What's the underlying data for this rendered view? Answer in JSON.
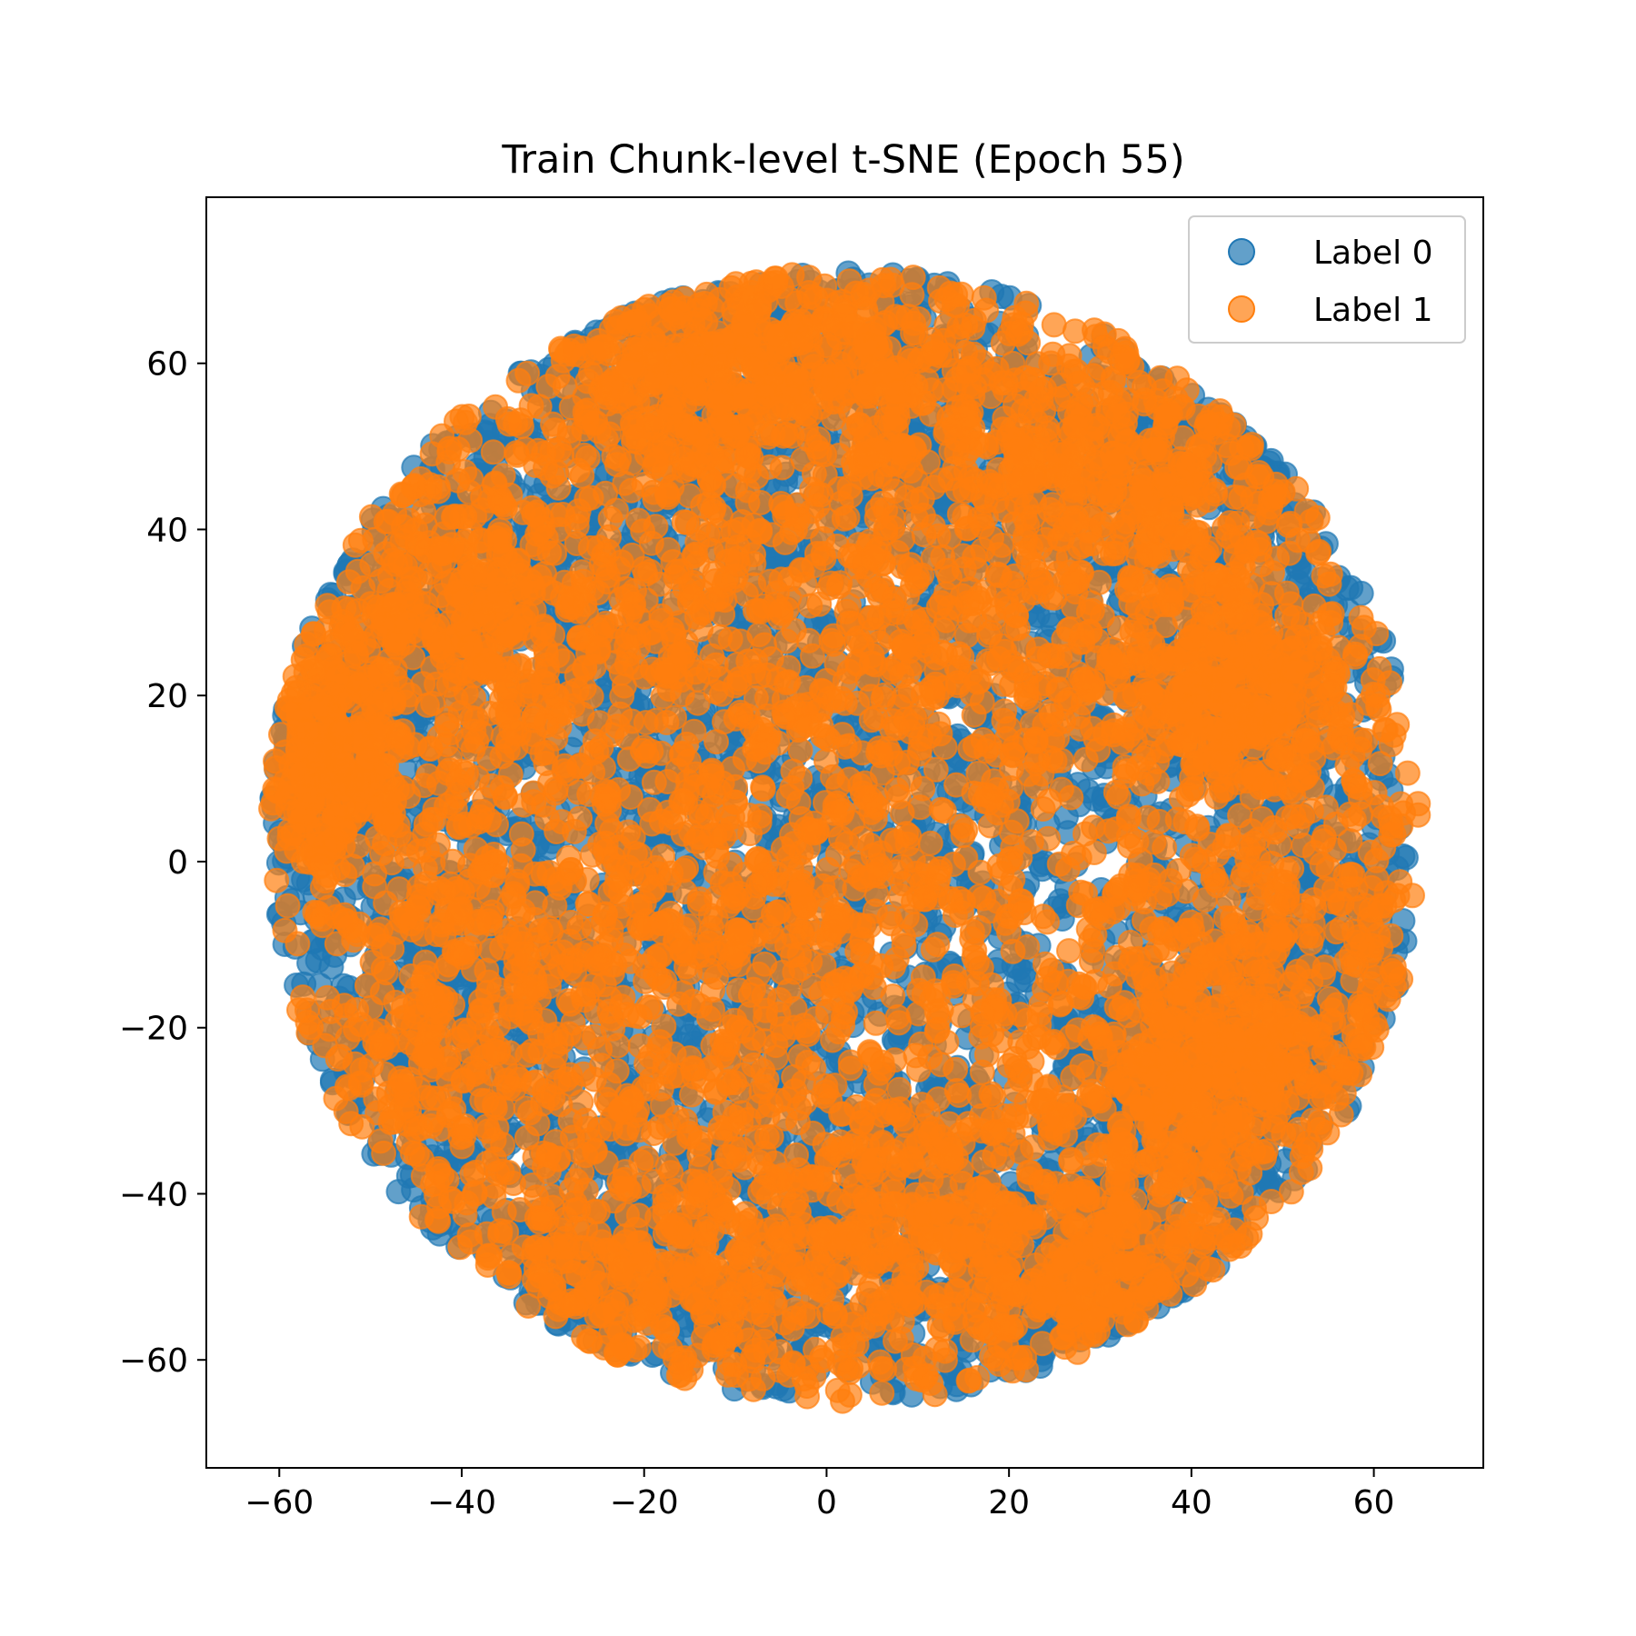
{
  "colors": {
    "label0": "#1f77b4",
    "label1": "#ff7f0e",
    "axes": "#000000",
    "background": "#ffffff"
  },
  "chart_data": {
    "type": "scatter",
    "title": "Train Chunk-level t-SNE (Epoch 55)",
    "xlabel": "",
    "ylabel": "",
    "xlim": [
      -68,
      72
    ],
    "ylim": [
      -73,
      80
    ],
    "xticks": [
      -60,
      -40,
      -20,
      0,
      20,
      40,
      60
    ],
    "yticks": [
      -60,
      -40,
      -20,
      0,
      20,
      40,
      60
    ],
    "xtick_labels": [
      "−60",
      "−40",
      "−20",
      "0",
      "20",
      "40",
      "60"
    ],
    "ytick_labels": [
      "−60",
      "−40",
      "−20",
      "0",
      "20",
      "40",
      "60"
    ],
    "grid": false,
    "legend_position": "upper right",
    "alpha": 0.7,
    "series": [
      {
        "name": "Label 0",
        "color": "#1f77b4",
        "approx_points": 6000,
        "blobs": [
          {
            "cx": -18,
            "cy": 60,
            "rx": 10,
            "ry": 10
          },
          {
            "cx": 5,
            "cy": 58,
            "rx": 12,
            "ry": 10
          },
          {
            "cx": 35,
            "cy": 48,
            "rx": 14,
            "ry": 10
          },
          {
            "cx": -40,
            "cy": 30,
            "rx": 12,
            "ry": 10
          },
          {
            "cx": -55,
            "cy": 12,
            "rx": 6,
            "ry": 8
          },
          {
            "cx": -20,
            "cy": 25,
            "rx": 22,
            "ry": 22
          },
          {
            "cx": 15,
            "cy": 25,
            "rx": 20,
            "ry": 18
          },
          {
            "cx": 45,
            "cy": 20,
            "rx": 8,
            "ry": 8
          },
          {
            "cx": -40,
            "cy": -20,
            "rx": 14,
            "ry": 18
          },
          {
            "cx": -5,
            "cy": -10,
            "rx": 18,
            "ry": 18
          },
          {
            "cx": 55,
            "cy": -15,
            "rx": 10,
            "ry": 16
          },
          {
            "cx": 40,
            "cy": -25,
            "rx": 10,
            "ry": 10
          },
          {
            "cx": -20,
            "cy": -50,
            "rx": 14,
            "ry": 10
          },
          {
            "cx": 10,
            "cy": -45,
            "rx": 15,
            "ry": 12
          },
          {
            "cx": 30,
            "cy": -50,
            "rx": 12,
            "ry": 10
          }
        ],
        "x_range": [
          -62,
          62
        ],
        "y_range": [
          -64,
          71
        ]
      },
      {
        "name": "Label 1",
        "color": "#ff7f0e",
        "approx_points": 6000,
        "blobs": [
          {
            "cx": -18,
            "cy": 60,
            "rx": 10,
            "ry": 10
          },
          {
            "cx": 5,
            "cy": 58,
            "rx": 12,
            "ry": 10
          },
          {
            "cx": 35,
            "cy": 48,
            "rx": 14,
            "ry": 10
          },
          {
            "cx": -40,
            "cy": 30,
            "rx": 12,
            "ry": 10
          },
          {
            "cx": -55,
            "cy": 12,
            "rx": 6,
            "ry": 8
          },
          {
            "cx": -20,
            "cy": 25,
            "rx": 22,
            "ry": 22
          },
          {
            "cx": 15,
            "cy": 25,
            "rx": 20,
            "ry": 18
          },
          {
            "cx": 45,
            "cy": 20,
            "rx": 8,
            "ry": 8
          },
          {
            "cx": -40,
            "cy": -20,
            "rx": 14,
            "ry": 18
          },
          {
            "cx": -5,
            "cy": -10,
            "rx": 18,
            "ry": 18
          },
          {
            "cx": 55,
            "cy": -15,
            "rx": 10,
            "ry": 16
          },
          {
            "cx": 40,
            "cy": -25,
            "rx": 10,
            "ry": 10
          },
          {
            "cx": -20,
            "cy": -50,
            "rx": 14,
            "ry": 10
          },
          {
            "cx": 10,
            "cy": -45,
            "rx": 15,
            "ry": 12
          },
          {
            "cx": 30,
            "cy": -50,
            "rx": 12,
            "ry": 10
          }
        ],
        "x_range": [
          -62,
          65
        ],
        "y_range": [
          -65,
          72
        ]
      }
    ]
  }
}
